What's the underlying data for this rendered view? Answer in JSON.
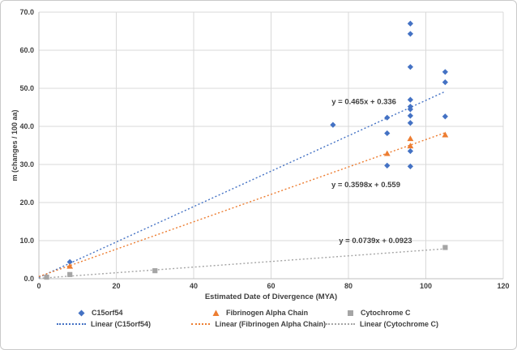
{
  "window": {
    "background": "#ffffff",
    "border_color": "#c9c9c9"
  },
  "chart_data": {
    "type": "scatter",
    "title": "",
    "xlabel": "Estimated Date of Divergence (MYA)",
    "ylabel": "m (changes / 100 aa)",
    "xlim": [
      0,
      120
    ],
    "xtick_step": 20,
    "ylim": [
      0,
      70
    ],
    "ytick_step": 10,
    "grid": true,
    "gridline_color": "#d9d9d9",
    "axis_line_color": "#bfbfbf",
    "legend_position": "bottom",
    "series": [
      {
        "name": "C15orf54",
        "marker": "diamond",
        "color": "#4472c4",
        "points": [
          [
            8,
            4.4
          ],
          [
            76,
            40.4
          ],
          [
            90,
            42.3
          ],
          [
            90,
            38.2
          ],
          [
            90,
            29.7
          ],
          [
            96,
            67.0
          ],
          [
            96,
            64.3
          ],
          [
            96,
            55.6
          ],
          [
            96,
            47.0
          ],
          [
            96,
            45.2
          ],
          [
            96,
            44.5
          ],
          [
            96,
            42.8
          ],
          [
            96,
            40.9
          ],
          [
            96,
            33.5
          ],
          [
            96,
            29.5
          ],
          [
            105,
            54.3
          ],
          [
            105,
            51.6
          ],
          [
            105,
            42.6
          ]
        ]
      },
      {
        "name": "Fibrinogen Alpha Chain",
        "marker": "triangle",
        "color": "#ed7d31",
        "points": [
          [
            8,
            3.3
          ],
          [
            90,
            32.9
          ],
          [
            96,
            36.8
          ],
          [
            96,
            34.9
          ],
          [
            105,
            37.8
          ]
        ]
      },
      {
        "name": "Cytochrome C",
        "marker": "square",
        "color": "#a5a5a5",
        "points": [
          [
            2,
            0.4
          ],
          [
            8,
            1.1
          ],
          [
            30,
            2.1
          ],
          [
            105,
            8.2
          ]
        ]
      }
    ],
    "trendlines": [
      {
        "series": "C15orf54",
        "equation": "y = 0.465x + 0.336",
        "slope": 0.465,
        "intercept": 0.336,
        "color": "#4472c4",
        "x_range": [
          0,
          105
        ],
        "label_at": [
          84,
          46.5
        ]
      },
      {
        "series": "Fibrinogen Alpha Chain",
        "equation": "y = 0.3598x + 0.559",
        "slope": 0.3598,
        "intercept": 0.559,
        "color": "#ed7d31",
        "x_range": [
          0,
          105
        ],
        "label_at": [
          84.5,
          24.7
        ]
      },
      {
        "series": "Cytochrome C",
        "equation": "y = 0.0739x + 0.0923",
        "slope": 0.0739,
        "intercept": 0.0923,
        "color": "#a5a5a5",
        "x_range": [
          0,
          105
        ],
        "label_at": [
          87,
          10.0
        ]
      }
    ],
    "equation_label_color": "#404040"
  },
  "legend": {
    "row1": [
      "C15orf54",
      "Fibrinogen Alpha Chain",
      "Cytochrome C"
    ],
    "row2": [
      "Linear (C15orf54)",
      "Linear (Fibrinogen Alpha Chain)",
      "Linear (Cytochrome C)"
    ]
  }
}
